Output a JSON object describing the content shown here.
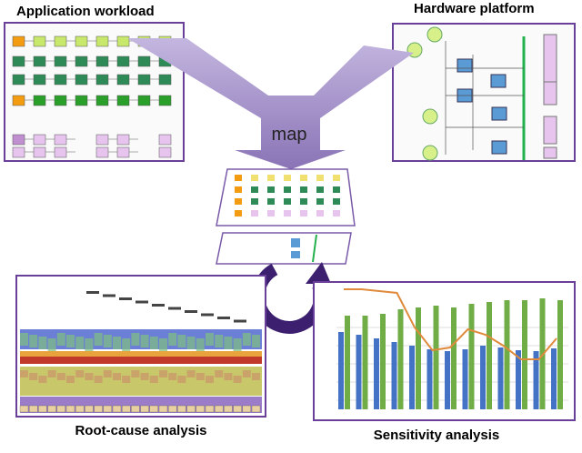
{
  "labels": {
    "application": "Application workload",
    "hardware": "Hardware platform",
    "map": "map",
    "root_cause": "Root-cause analysis",
    "sensitivity": "Sensitivity analysis"
  }
}
